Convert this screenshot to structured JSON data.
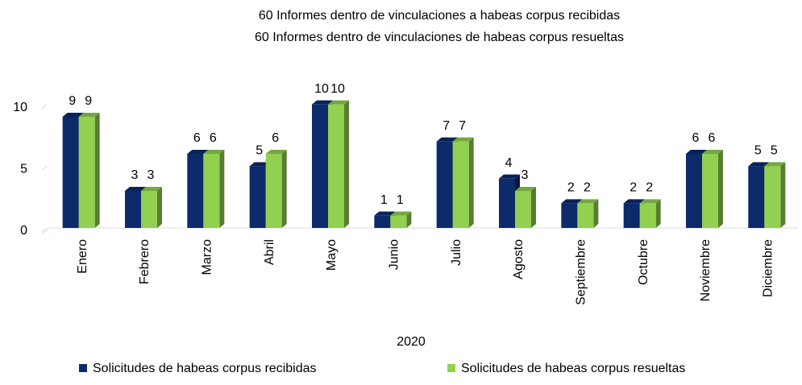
{
  "chart_data": {
    "type": "bar3d",
    "title": "60 Informes dentro de vinculaciones a habeas corpus recibidas",
    "subtitle": "60 Informes dentro de vinculaciones de habeas corpus resueltas",
    "xlabel": "2020",
    "categories": [
      "Enero",
      "Febrero",
      "Marzo",
      "Abril",
      "Mayo",
      "Junio",
      "Julio",
      "Agosto",
      "Septiembre",
      "Octubre",
      "Noviembre",
      "Diciembre"
    ],
    "series": [
      {
        "name": "Solicitudes de habeas corpus recibidas",
        "color": "#0d2a6b",
        "values": [
          9,
          3,
          6,
          5,
          10,
          1,
          7,
          4,
          2,
          2,
          6,
          5
        ]
      },
      {
        "name": "Solicitudes de habeas corpus resueltas",
        "color": "#92d050",
        "values": [
          9,
          3,
          6,
          6,
          10,
          1,
          7,
          3,
          2,
          2,
          6,
          5
        ]
      }
    ],
    "ylim": [
      0,
      12
    ],
    "yticks": [
      0,
      5,
      10
    ],
    "grid": false,
    "legend": "bottom"
  }
}
